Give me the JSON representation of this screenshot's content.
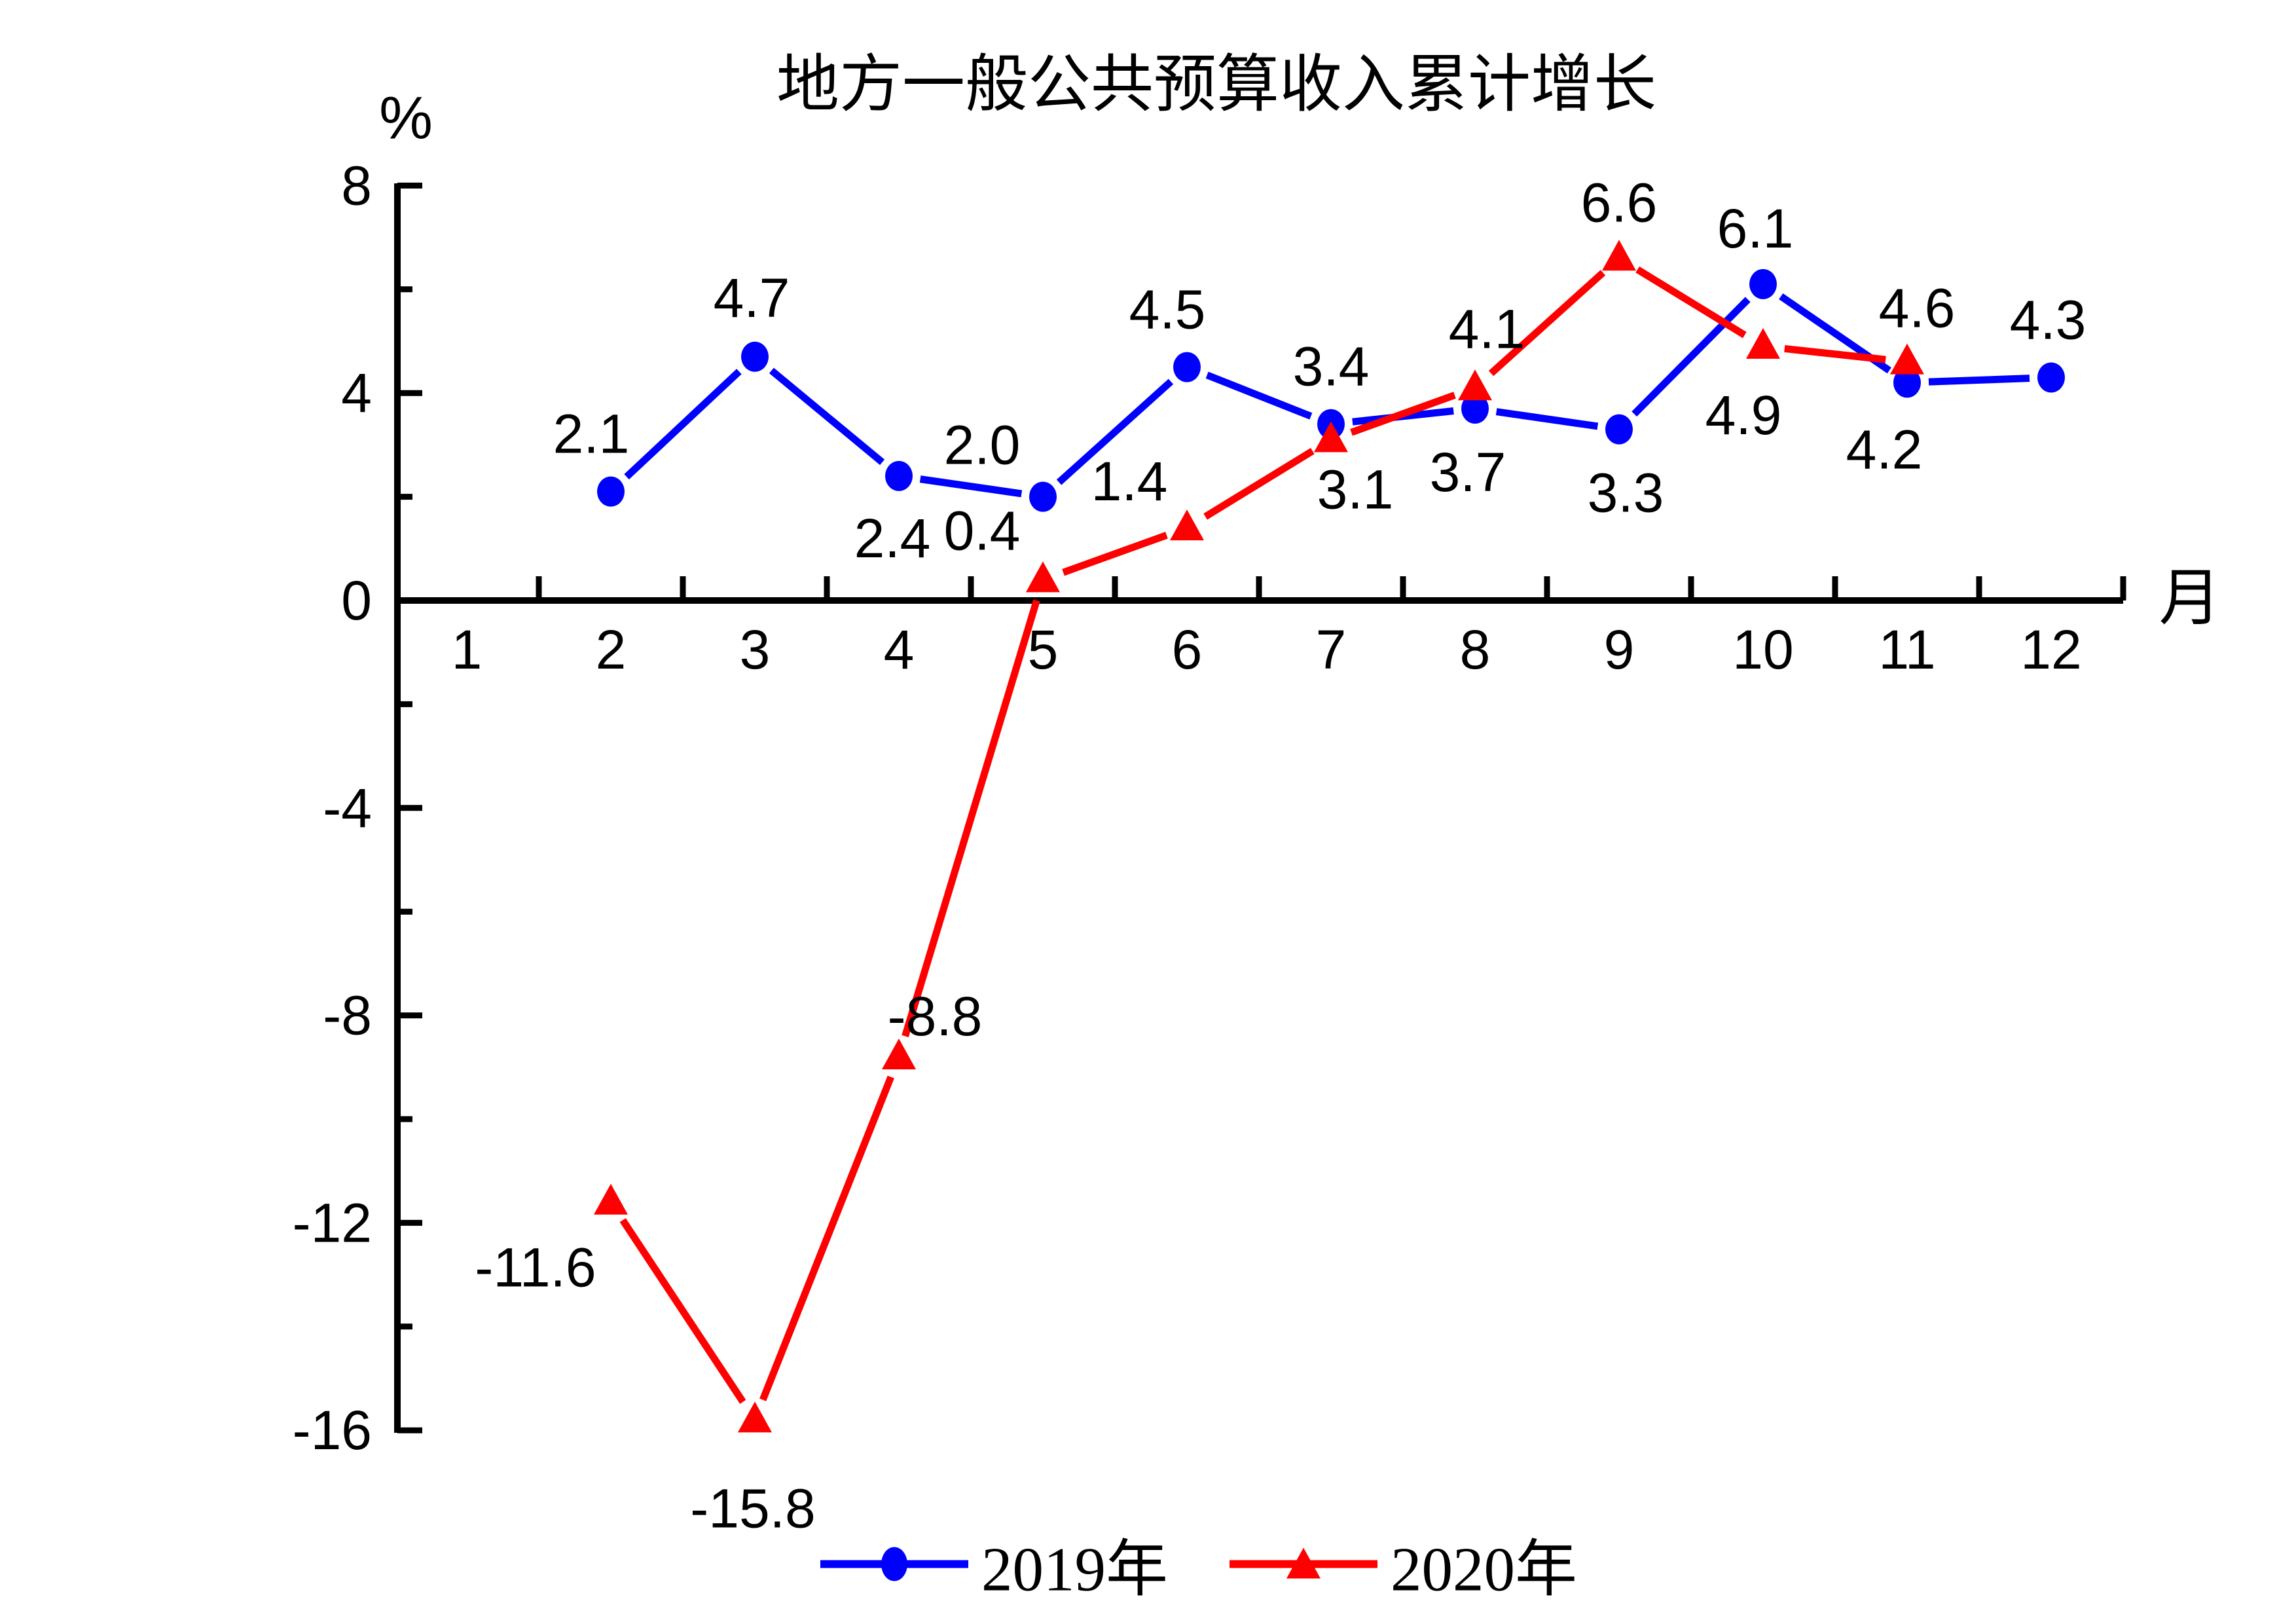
{
  "chart_data": {
    "type": "line",
    "title": "地方一般公共预算收入累计增长",
    "ylabel_unit": "%",
    "xlabel_unit": "月",
    "x_ticklabels": [
      "1",
      "2",
      "3",
      "4",
      "5",
      "6",
      "7",
      "8",
      "9",
      "10",
      "11",
      "12"
    ],
    "y_ticklabels": [
      "8",
      "4",
      "0",
      "-4",
      "-8",
      "-12",
      "-16"
    ],
    "y_minor_ticks": [
      6,
      2,
      -2,
      -6,
      -10,
      -14
    ],
    "ylim": [
      -16,
      8
    ],
    "xlim": [
      0.5,
      12.5
    ],
    "grid": false,
    "legend_position": "bottom-center",
    "axis_color": "#000000",
    "series": [
      {
        "name": "2019年",
        "color": "#0000ff",
        "marker": "circle",
        "points": [
          {
            "month": 2,
            "value": 2.1,
            "label": "2.1",
            "label_dx": -30,
            "label_dy": -88
          },
          {
            "month": 3,
            "value": 4.7,
            "label": "4.7",
            "label_dx": -5,
            "label_dy": -90
          },
          {
            "month": 4,
            "value": 2.4,
            "label": "2.4",
            "label_dx": -10,
            "label_dy": 95
          },
          {
            "month": 5,
            "value": 2.0,
            "label": "2.0",
            "label_dx": -93,
            "label_dy": -79
          },
          {
            "month": 6,
            "value": 4.5,
            "label": "4.5",
            "label_dx": -30,
            "label_dy": -88
          },
          {
            "month": 7,
            "value": 3.4,
            "label": "3.4",
            "label_dx": 0,
            "label_dy": -88
          },
          {
            "month": 8,
            "value": 3.7,
            "label": "3.7",
            "label_dx": -11,
            "label_dy": 97
          },
          {
            "month": 9,
            "value": 3.3,
            "label": "3.3",
            "label_dx": 10,
            "label_dy": 97
          },
          {
            "month": 10,
            "value": 6.1,
            "label": "6.1",
            "label_dx": -12,
            "label_dy": -85
          },
          {
            "month": 11,
            "value": 4.2,
            "label": "4.2",
            "label_dx": -35,
            "label_dy": 102
          },
          {
            "month": 12,
            "value": 4.3,
            "label": "4.3",
            "label_dx": -5,
            "label_dy": -88
          }
        ]
      },
      {
        "name": "2020年",
        "color": "#ff0000",
        "marker": "triangle",
        "points": [
          {
            "month": 2,
            "value": -11.6,
            "label": "-11.6",
            "label_dx": -115,
            "label_dy": 100
          },
          {
            "month": 3,
            "value": -15.8,
            "label": "-15.8",
            "label_dx": -3,
            "label_dy": 135
          },
          {
            "month": 4,
            "value": -8.8,
            "label": "-8.8",
            "label_dx": 55,
            "label_dy": -62
          },
          {
            "month": 5,
            "value": 0.4,
            "label": "0.4",
            "label_dx": -93,
            "label_dy": -75
          },
          {
            "month": 6,
            "value": 1.4,
            "label": "1.4",
            "label_dx": -88,
            "label_dy": -71
          },
          {
            "month": 7,
            "value": 3.1,
            "label": "3.1",
            "label_dx": 37,
            "label_dy": 76
          },
          {
            "month": 8,
            "value": 4.1,
            "label": "4.1",
            "label_dx": 18,
            "label_dy": -90
          },
          {
            "month": 9,
            "value": 6.6,
            "label": "6.6",
            "label_dx": 0,
            "label_dy": -85
          },
          {
            "month": 10,
            "value": 4.9,
            "label": "4.9",
            "label_dx": -30,
            "label_dy": 105
          },
          {
            "month": 11,
            "value": 4.6,
            "label": "4.6",
            "label_dx": 15,
            "label_dy": -82
          }
        ]
      }
    ]
  }
}
